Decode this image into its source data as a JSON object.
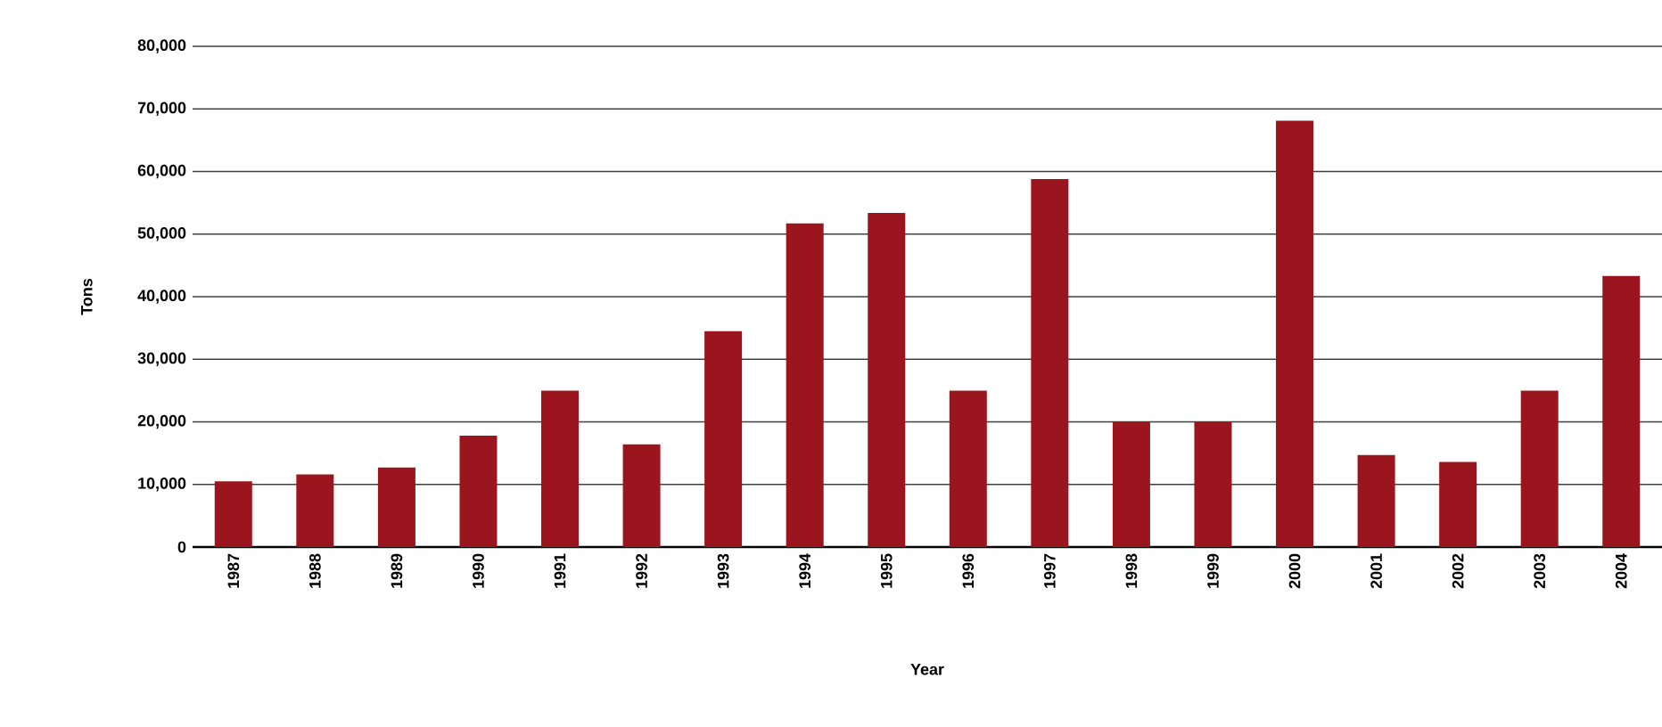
{
  "chart_data": {
    "type": "bar",
    "xlabel": "Year",
    "ylabel": "Tons",
    "categories": [
      "1987",
      "1988",
      "1989",
      "1990",
      "1991",
      "1992",
      "1993",
      "1994",
      "1995",
      "1996",
      "1997",
      "1998",
      "1999",
      "2000",
      "2001",
      "2002",
      "2003",
      "2004"
    ],
    "values": [
      10500,
      11600,
      12700,
      17800,
      25000,
      16400,
      34500,
      51700,
      53400,
      25000,
      58800,
      20000,
      20000,
      68100,
      14700,
      13600,
      25000,
      43300
    ],
    "color": "#9b151e",
    "ylim": [
      0,
      80000
    ],
    "yticks": [
      {
        "value": 0,
        "label": "0"
      },
      {
        "value": 10000,
        "label": "10,000"
      },
      {
        "value": 20000,
        "label": "20,000"
      },
      {
        "value": 30000,
        "label": "30,000"
      },
      {
        "value": 40000,
        "label": "40,000"
      },
      {
        "value": 50000,
        "label": "50,000"
      },
      {
        "value": 60000,
        "label": "60,000"
      },
      {
        "value": 70000,
        "label": "70,000"
      },
      {
        "value": 80000,
        "label": "80,000"
      }
    ],
    "grid": "y"
  }
}
